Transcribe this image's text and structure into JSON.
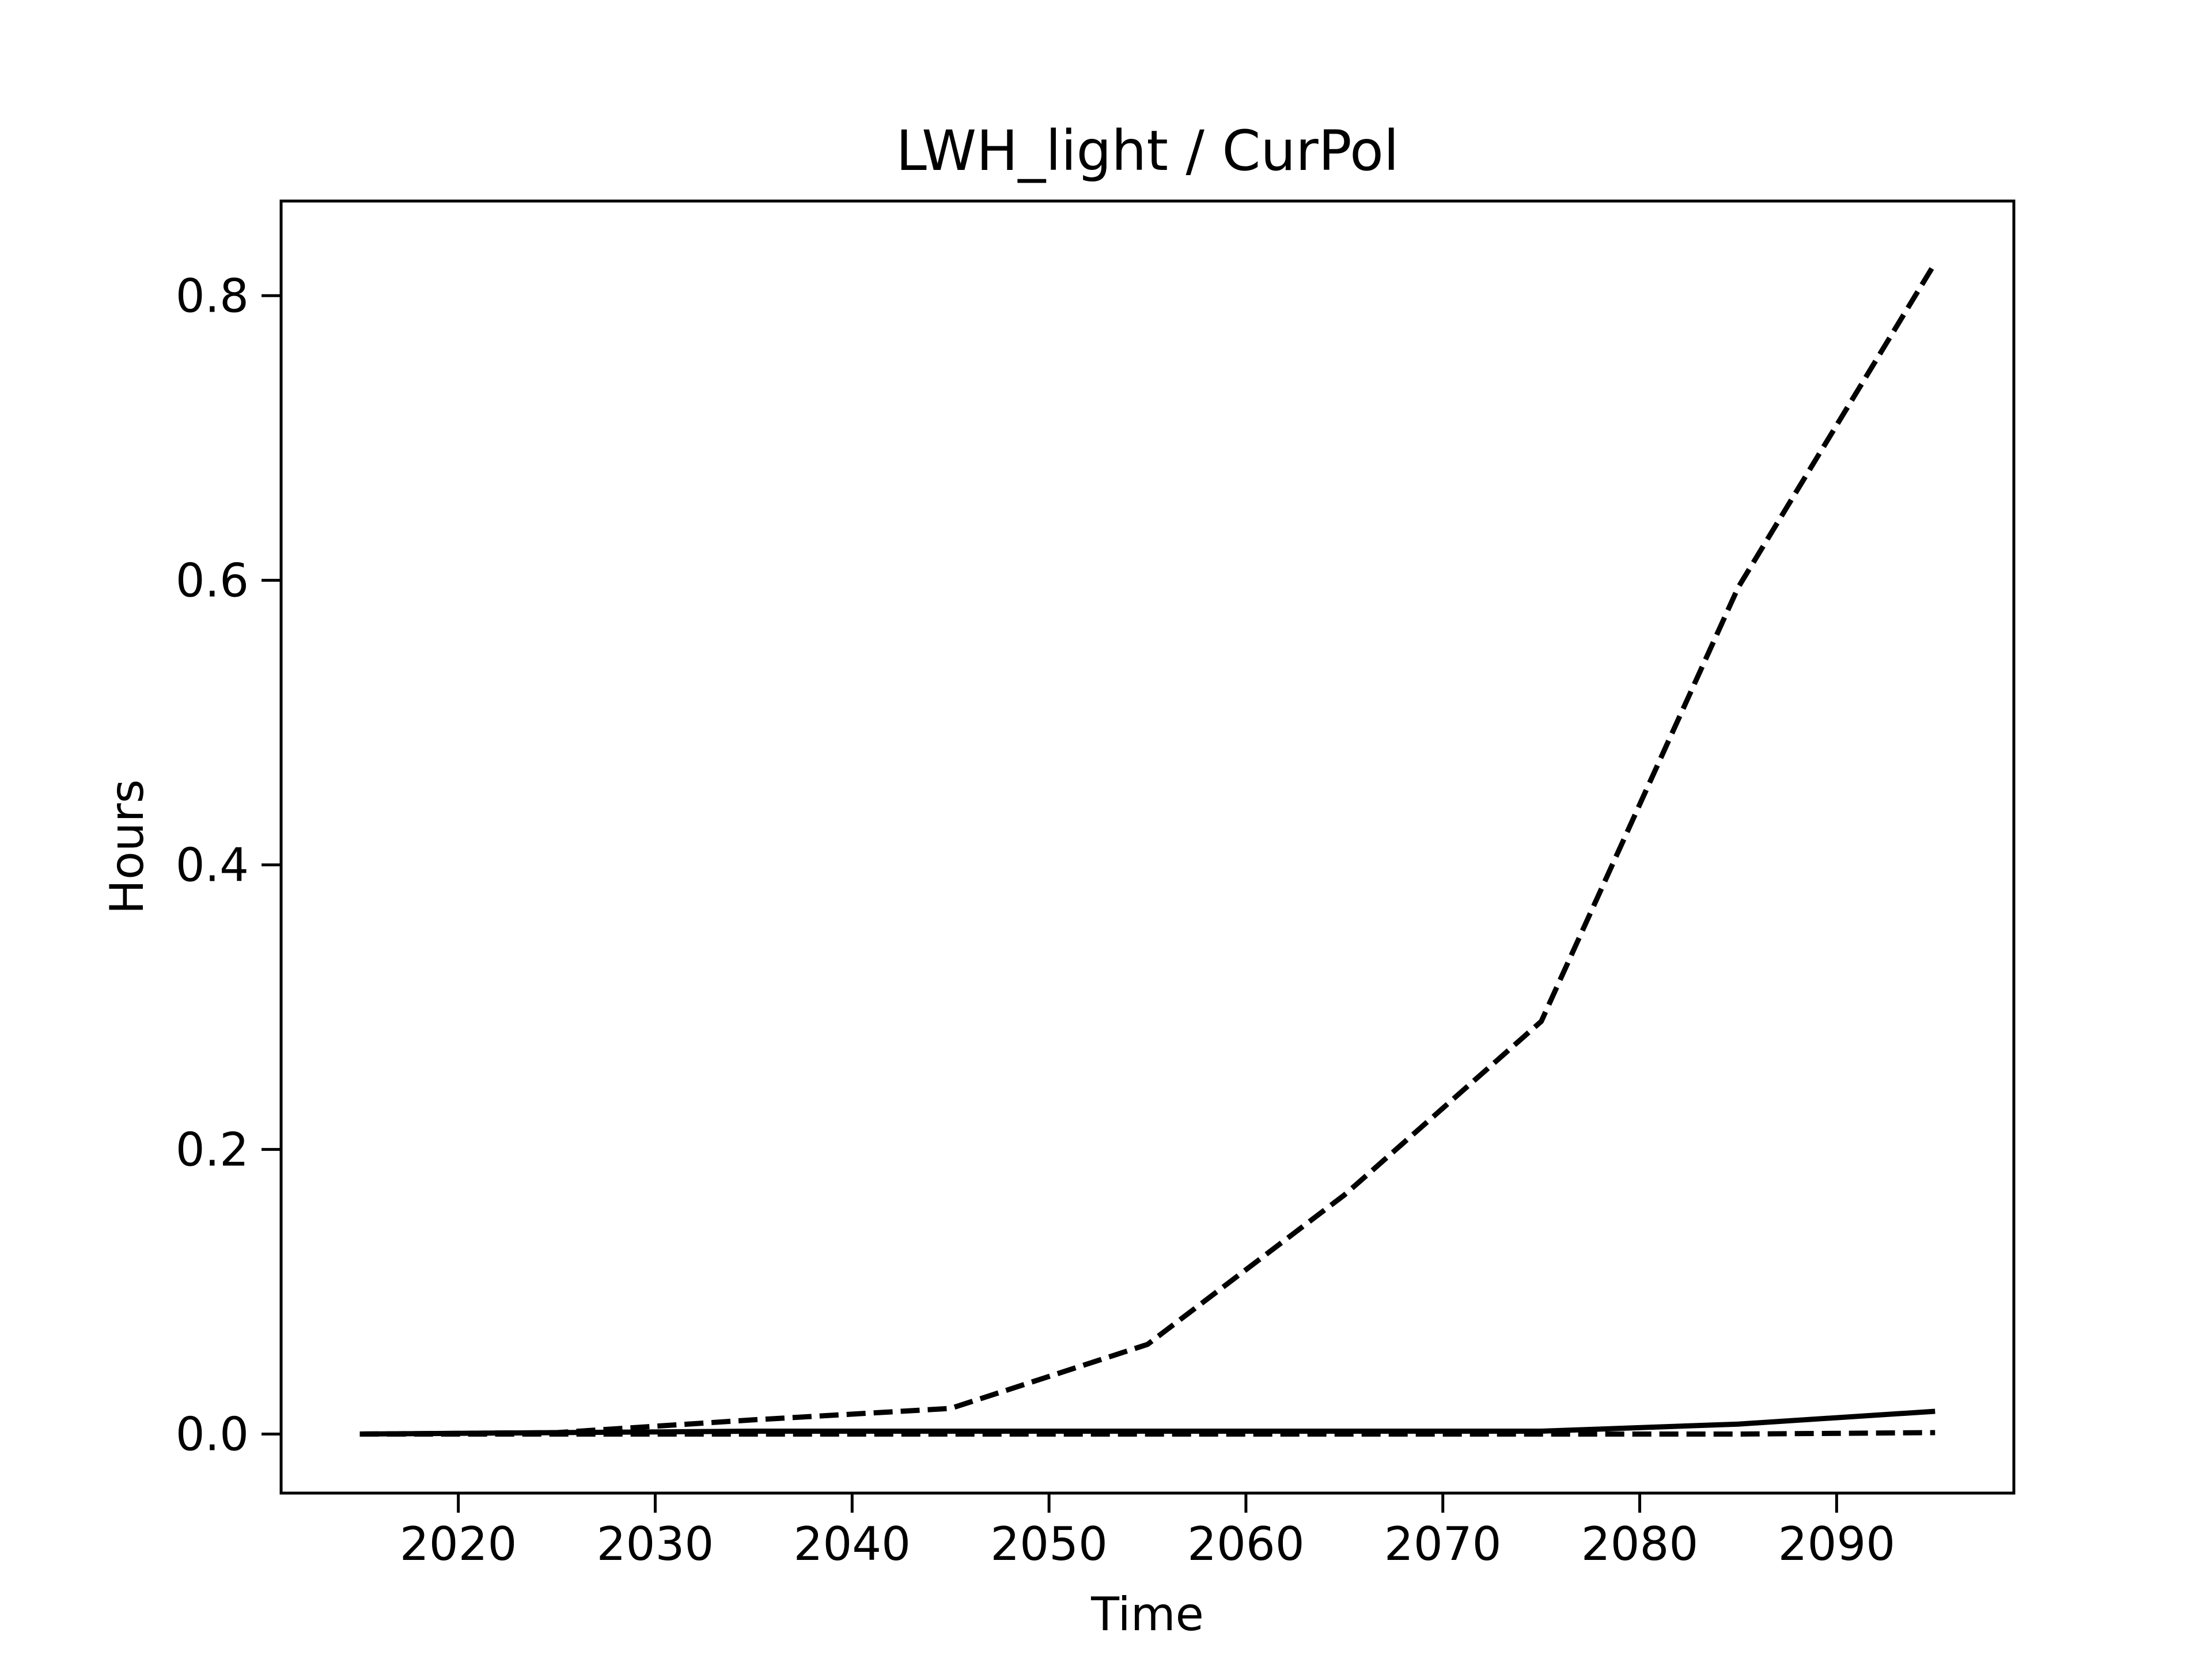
{
  "chart_data": {
    "type": "line",
    "title": "LWH_light / CurPol",
    "xlabel": "Time",
    "ylabel": "Hours",
    "xlim": [
      2011,
      2099
    ],
    "ylim": [
      -0.0415,
      0.8665
    ],
    "xticks": [
      2020,
      2030,
      2040,
      2050,
      2060,
      2070,
      2080,
      2090
    ],
    "yticks": [
      0.0,
      0.2,
      0.4,
      0.6,
      0.8
    ],
    "ytick_labels": [
      "0.0",
      "0.2",
      "0.4",
      "0.6",
      "0.8"
    ],
    "grid": false,
    "legend": "none",
    "x": [
      2015,
      2025,
      2035,
      2045,
      2055,
      2065,
      2075,
      2085,
      2095
    ],
    "series": [
      {
        "style": "dashed",
        "color": "#000000",
        "values": [
          0.0,
          0.001,
          0.01,
          0.018,
          0.063,
          0.168,
          0.29,
          0.595,
          0.823
        ]
      },
      {
        "style": "solid",
        "color": "#000000",
        "values": [
          0.0,
          0.001,
          0.002,
          0.002,
          0.002,
          0.002,
          0.002,
          0.007,
          0.016
        ]
      },
      {
        "style": "dashed",
        "color": "#000000",
        "values": [
          0.0,
          0.0,
          0.0,
          0.0,
          0.0,
          0.0,
          0.0,
          0.0,
          0.001
        ]
      }
    ]
  }
}
